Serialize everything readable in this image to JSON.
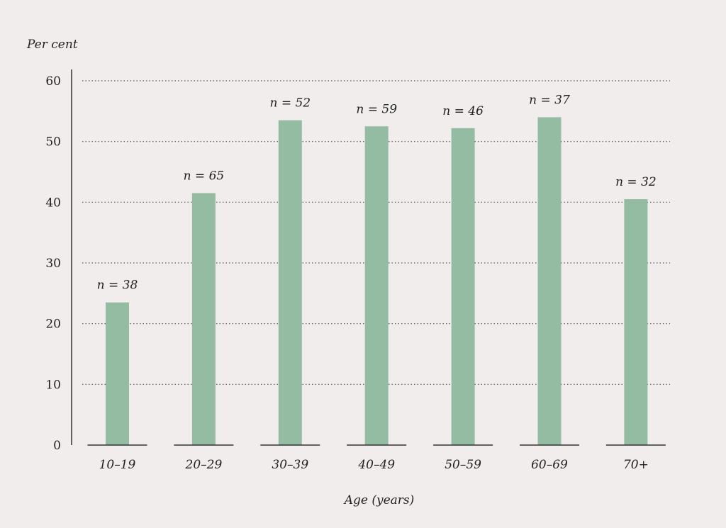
{
  "chart_data": {
    "type": "bar",
    "ylabel": "Per cent",
    "xlabel": "Age (years)",
    "categories": [
      "10–19",
      "20–29",
      "30–39",
      "40–49",
      "50–59",
      "60–69",
      "70+"
    ],
    "values": [
      23.5,
      41.5,
      53.5,
      52.5,
      52.2,
      54.0,
      40.5
    ],
    "annotations": [
      "n = 38",
      "n = 65",
      "n = 52",
      "n = 59",
      "n = 46",
      "n = 37",
      "n = 32"
    ],
    "ylim": [
      0,
      60
    ],
    "yticks": [
      "0",
      "10",
      "20",
      "30",
      "40",
      "50",
      "60"
    ],
    "grid": true,
    "colors": {
      "bar": "#93bca2",
      "baseline": "#333333",
      "axis": "#333333",
      "text": "#222222",
      "background": "#f1eded"
    }
  }
}
